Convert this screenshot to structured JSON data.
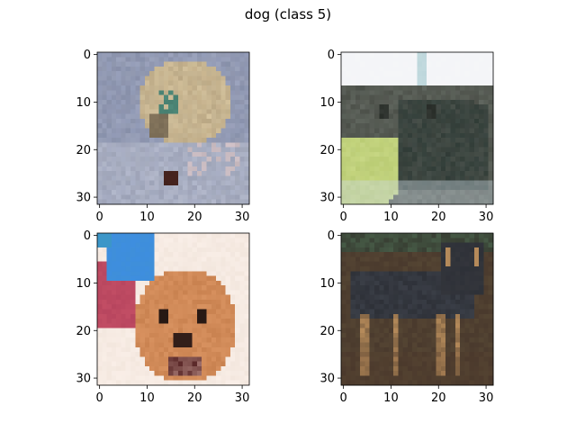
{
  "figure": {
    "suptitle": "dog (class 5)"
  },
  "chart_data": [
    {
      "type": "image",
      "subject": "puppy with collar sniffing ground",
      "xticks": [
        0,
        10,
        20,
        30
      ],
      "yticks": [
        0,
        10,
        20,
        30
      ],
      "xlim": [
        -0.5,
        31.5
      ],
      "ylim": [
        31.5,
        -0.5
      ],
      "image_size": [
        32,
        32
      ],
      "palette": {
        "bg": "#8e97b4",
        "fg": "#c9b58f",
        "accent": "#4e8a7a",
        "shadow": "#d9dbe4"
      }
    },
    {
      "type": "image",
      "subject": "dark dog face close-up on green background",
      "xticks": [
        0,
        10,
        20,
        30
      ],
      "yticks": [
        0,
        10,
        20,
        30
      ],
      "xlim": [
        -0.5,
        31.5
      ],
      "ylim": [
        31.5,
        -0.5
      ],
      "image_size": [
        32,
        32
      ],
      "palette": {
        "bg": "#f4f5f8",
        "fg": "#4a4e47",
        "accent": "#b9cb72",
        "shadow": "#2f3b36"
      }
    },
    {
      "type": "image",
      "subject": "fluffy brown pekingese-like dog with blue toy",
      "xticks": [
        0,
        10,
        20,
        30
      ],
      "yticks": [
        0,
        10,
        20,
        30
      ],
      "xlim": [
        -0.5,
        31.5
      ],
      "ylim": [
        31.5,
        -0.5
      ],
      "image_size": [
        32,
        32
      ],
      "palette": {
        "bg": "#f3e7de",
        "fg": "#c98250",
        "accent": "#3f8fd9",
        "shadow": "#b7455e"
      }
    },
    {
      "type": "image",
      "subject": "dark short-haired dog standing",
      "xticks": [
        0,
        10,
        20,
        30
      ],
      "yticks": [
        0,
        10,
        20,
        30
      ],
      "xlim": [
        -0.5,
        31.5
      ],
      "ylim": [
        31.5,
        -0.5
      ],
      "image_size": [
        32,
        32
      ],
      "palette": {
        "bg": "#4a3a2d",
        "fg": "#2e3138",
        "accent": "#b58a5a",
        "shadow": "#2a2420"
      }
    }
  ]
}
